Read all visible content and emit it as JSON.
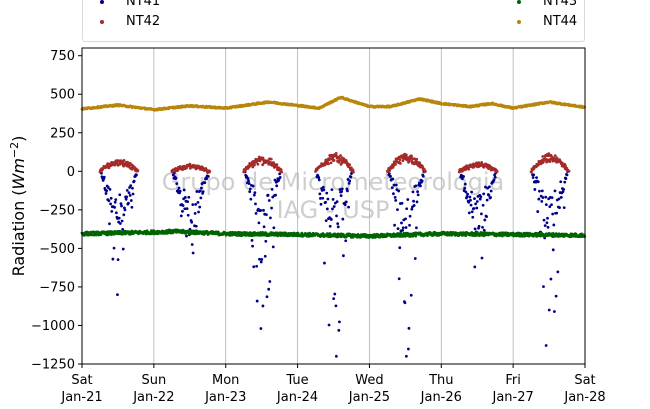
{
  "chart_data": {
    "type": "scatter",
    "title": "",
    "ylabel": "Radiation (Wm⁻²)",
    "ylabel_base": "Radiation (",
    "ylabel_math": "Wm",
    "ylabel_exp": "−2",
    "ylabel_close": ")",
    "xlabel": "",
    "ylim": [
      -1250,
      800
    ],
    "yticks": [
      -1250,
      -1000,
      -750,
      -500,
      -250,
      0,
      250,
      500,
      750
    ],
    "ytick_labels": [
      "−1250",
      "−1000",
      "−750",
      "−500",
      "−250",
      "0",
      "250",
      "500",
      "750"
    ],
    "xlim": [
      0,
      7
    ],
    "xticks": [
      0,
      1,
      2,
      3,
      4,
      5,
      6,
      7
    ],
    "xtick_labels": [
      [
        "Sat",
        "Jan-21"
      ],
      [
        "Sun",
        "Jan-22"
      ],
      [
        "Mon",
        "Jan-23"
      ],
      [
        "Tue",
        "Jan-24"
      ],
      [
        "Wed",
        "Jan-25"
      ],
      [
        "Thu",
        "Jan-26"
      ],
      [
        "Fri",
        "Jan-27"
      ],
      [
        "Sat",
        "Jan-28"
      ]
    ],
    "x_units": "days since Sat Jan-21 00:00",
    "grid": "vertical",
    "legend_placement": "top",
    "watermark": [
      "Grupo de Micrometeorologia",
      "IAG - USP"
    ],
    "series": [
      {
        "name": "NT41",
        "color": "#00008b",
        "kind": "night-longwave",
        "daily_depth": [
          800,
          530,
          1020,
          1200,
          1200,
          620,
          1130
        ]
      },
      {
        "name": "NT42",
        "color": "#a52a2a",
        "kind": "day-bump",
        "daily_peak": [
          75,
          40,
          90,
          110,
          110,
          50,
          105
        ]
      },
      {
        "name": "NT43",
        "color": "#006400",
        "kind": "noisy-baseline",
        "anchors": [
          [
            0,
            -405
          ],
          [
            1,
            -395
          ],
          [
            1.3,
            -390
          ],
          [
            2,
            -405
          ],
          [
            3,
            -410
          ],
          [
            4,
            -420
          ],
          [
            5,
            -405
          ],
          [
            6,
            -410
          ],
          [
            7,
            -415
          ]
        ]
      },
      {
        "name": "NT44",
        "color": "#b8860b",
        "kind": "smooth-baseline",
        "anchors": [
          [
            0,
            405
          ],
          [
            0.5,
            430
          ],
          [
            1,
            400
          ],
          [
            1.5,
            425
          ],
          [
            2,
            410
          ],
          [
            2.6,
            450
          ],
          [
            3.3,
            410
          ],
          [
            3.6,
            480
          ],
          [
            4,
            420
          ],
          [
            4.3,
            420
          ],
          [
            4.7,
            470
          ],
          [
            5,
            440
          ],
          [
            5.4,
            420
          ],
          [
            5.7,
            440
          ],
          [
            6,
            410
          ],
          [
            6.5,
            450
          ],
          [
            7,
            415
          ]
        ]
      }
    ]
  },
  "legend": {
    "left": [
      {
        "name": "NT41",
        "color": "#00008b"
      },
      {
        "name": "NT42",
        "color": "#a52a2a"
      }
    ],
    "right": [
      {
        "name": "NT43",
        "color": "#006400"
      },
      {
        "name": "NT44",
        "color": "#b8860b"
      }
    ]
  }
}
